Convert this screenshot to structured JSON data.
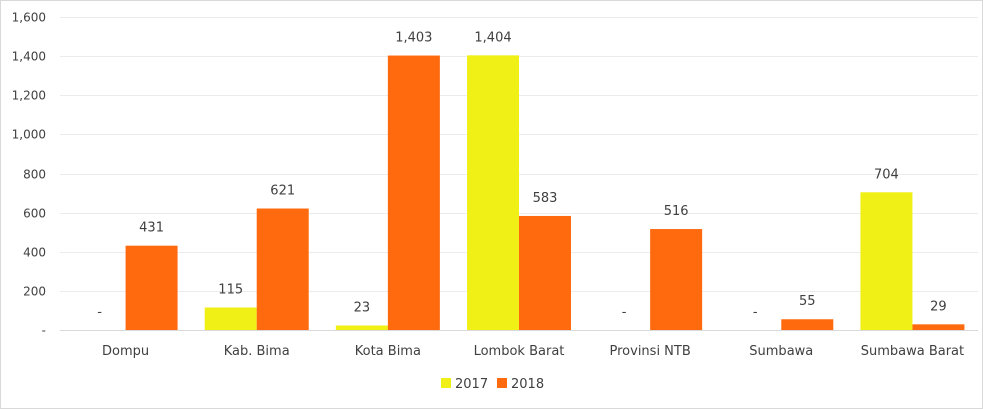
{
  "chart_data": {
    "type": "bar",
    "categories": [
      "Dompu",
      "Kab. Bima",
      "Kota Bima",
      "Lombok Barat",
      "Provinsi NTB",
      "Sumbawa",
      "Sumbawa Barat"
    ],
    "series": [
      {
        "name": "2017",
        "color": "#f0f016",
        "values": [
          0,
          115,
          23,
          1404,
          0,
          0,
          704
        ],
        "labels": [
          "-",
          "115",
          "23",
          "1,404",
          "-",
          "-",
          "704"
        ]
      },
      {
        "name": "2018",
        "color": "#ff6a0f",
        "values": [
          431,
          621,
          1403,
          583,
          516,
          55,
          29
        ],
        "labels": [
          "431",
          "621",
          "1,403",
          "583",
          "516",
          "55",
          "29"
        ]
      }
    ],
    "ylim": [
      0,
      1600
    ],
    "yticks": [
      0,
      200,
      400,
      600,
      800,
      1000,
      1200,
      1400,
      1600
    ],
    "ytick_labels": [
      "-",
      "200",
      "400",
      "600",
      "800",
      "1,000",
      "1,200",
      "1,400",
      "1,600"
    ],
    "grid": true,
    "legend_position": "bottom"
  }
}
